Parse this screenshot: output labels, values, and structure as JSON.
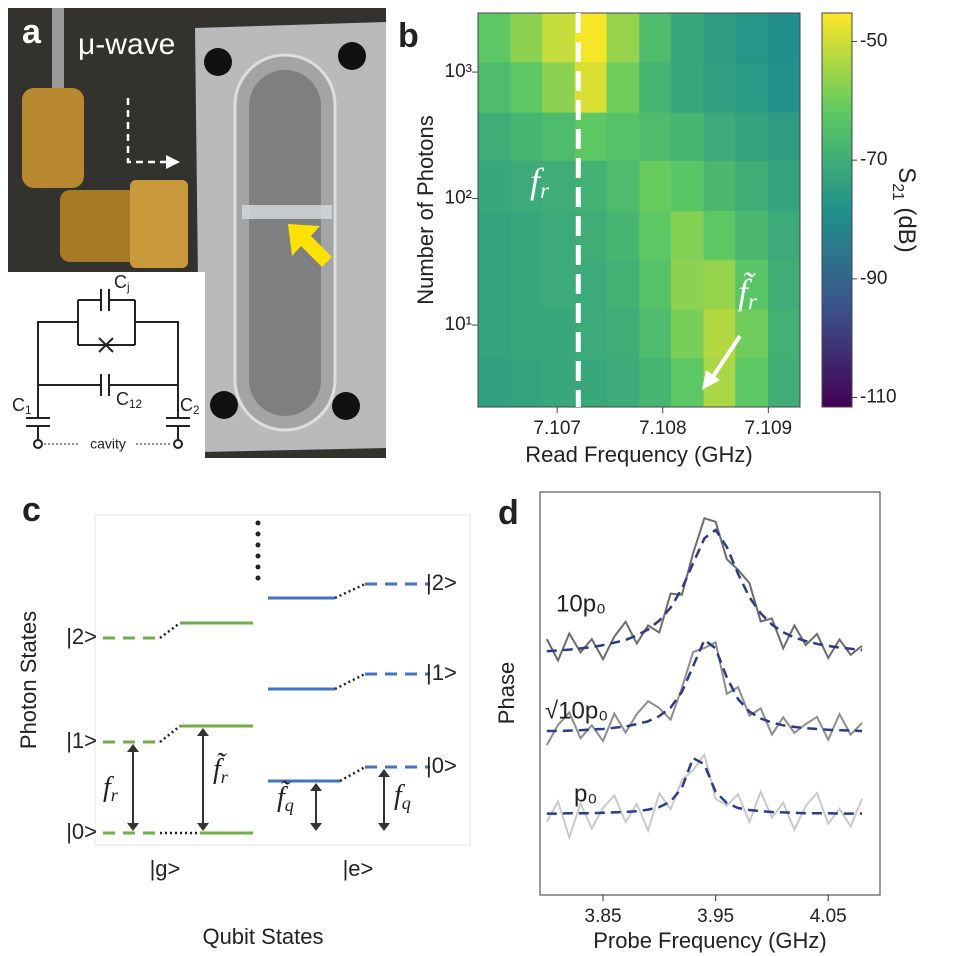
{
  "panel_a": {
    "label": "a",
    "annotation": "μ-wave",
    "circuit": {
      "capacitors": [
        {
          "base": "C",
          "sub": "j"
        },
        {
          "base": "C",
          "sub": "12"
        },
        {
          "base": "C",
          "sub": "1"
        },
        {
          "base": "C",
          "sub": "2"
        }
      ],
      "cavity": "cavity"
    }
  },
  "panel_c": {
    "label": "c",
    "ylabel": "Photon States",
    "xlabel": "Qubit States",
    "photon_states": [
      "|0>",
      "|1>",
      "|2>"
    ],
    "qubit_states": [
      "|g>",
      "|e>"
    ],
    "transitions": [
      {
        "base": "f",
        "sub": "r"
      },
      {
        "base": "f̃",
        "sub": "r"
      },
      {
        "base": "f̃",
        "sub": "q"
      },
      {
        "base": "f",
        "sub": "q"
      }
    ]
  },
  "chart_data": [
    {
      "label": "b",
      "type": "heatmap",
      "xlabel": "Read Frequency (GHz)",
      "ylabel": "Number of Photons",
      "xlim": [
        7.10625,
        7.1093
      ],
      "ylim": [
        2.25,
        2930
      ],
      "yscale": "log",
      "xticks": [
        7.107,
        7.108,
        7.109
      ],
      "yticks": [
        {
          "value": 10,
          "label": "10¹"
        },
        {
          "value": 100,
          "label": "10²"
        },
        {
          "value": 1000,
          "label": "10³"
        }
      ],
      "xbins": [
        7.10625,
        7.10656,
        7.10686,
        7.10717,
        7.10747,
        7.10778,
        7.10808,
        7.10839,
        7.10869,
        7.109,
        7.1093
      ],
      "ybins": [
        2.25,
        5.5,
        13.5,
        33,
        80,
        200,
        480,
        1200,
        2930
      ],
      "z": [
        [
          -74,
          -73,
          -72,
          -72,
          -71,
          -68,
          -62,
          -54,
          -62,
          -70
        ],
        [
          -73,
          -72,
          -72,
          -71,
          -70,
          -66,
          -59,
          -53,
          -60,
          -69
        ],
        [
          -73,
          -72,
          -71,
          -71,
          -69,
          -64,
          -57,
          -56,
          -63,
          -70
        ],
        [
          -73,
          -72,
          -71,
          -70,
          -68,
          -62,
          -58,
          -62,
          -67,
          -71
        ],
        [
          -72,
          -71,
          -70,
          -69,
          -66,
          -61,
          -63,
          -67,
          -70,
          -73
        ],
        [
          -70,
          -68,
          -66,
          -62,
          -64,
          -66,
          -68,
          -71,
          -73,
          -75
        ],
        [
          -66,
          -62,
          -57,
          -49,
          -60,
          -68,
          -72,
          -74,
          -76,
          -78
        ],
        [
          -62,
          -57,
          -51,
          -46,
          -56,
          -66,
          -72,
          -75,
          -77,
          -79
        ]
      ],
      "colormap": "viridis",
      "colorbar": {
        "label": {
          "base": "S",
          "sub": "21",
          "unit": "(dB)"
        },
        "lim": [
          -111.6,
          -45.2
        ],
        "ticks": [
          -50,
          -70,
          -90,
          -110
        ]
      },
      "fr_line_x": 7.1072,
      "line_label": {
        "base": "f",
        "sub": "r"
      },
      "arrow_label": {
        "base": "f̃",
        "sub": "r"
      }
    },
    {
      "label": "d",
      "type": "line",
      "xlabel": "Probe Frequency (GHz)",
      "ylabel": "Phase",
      "xlim": [
        3.794,
        4.096
      ],
      "ylim": [
        0,
        10
      ],
      "xticks": [
        3.85,
        3.95,
        4.05
      ],
      "x": [
        3.8,
        3.81,
        3.82,
        3.83,
        3.84,
        3.85,
        3.86,
        3.87,
        3.88,
        3.89,
        3.9,
        3.91,
        3.92,
        3.93,
        3.94,
        3.95,
        3.96,
        3.97,
        3.98,
        3.99,
        4.0,
        4.01,
        4.02,
        4.03,
        4.04,
        4.05,
        4.06,
        4.07,
        4.08
      ],
      "series": [
        {
          "name": "10p₀",
          "color": "#6c6c6c",
          "values": [
            6.35,
            5.82,
            6.49,
            6.02,
            6.35,
            5.85,
            6.41,
            6.78,
            6.24,
            6.69,
            6.51,
            7.48,
            7.45,
            8.48,
            9.35,
            9.26,
            8.33,
            8.07,
            7.74,
            6.79,
            6.86,
            6.12,
            6.69,
            6.2,
            6.48,
            5.88,
            6.34,
            5.96,
            6.18
          ]
        },
        {
          "name": "√10p₀",
          "color": "#8e8e8e",
          "values": [
            3.72,
            4.22,
            4.53,
            3.89,
            4.21,
            3.82,
            4.5,
            4.03,
            4.49,
            4.81,
            4.64,
            4.35,
            5.14,
            6.03,
            6.13,
            6.27,
            4.99,
            5.16,
            4.45,
            4.63,
            3.98,
            4.41,
            4.02,
            4.24,
            4.42,
            3.85,
            4.49,
            3.98,
            4.27
          ]
        },
        {
          "name": "p₀",
          "color": "#c9c9c9",
          "values": [
            1.82,
            2.32,
            1.43,
            2.27,
            1.65,
            2.16,
            2.47,
            1.81,
            2.26,
            1.6,
            2.52,
            2.13,
            2.85,
            3.1,
            3.48,
            2.39,
            2.22,
            2.5,
            1.81,
            2.56,
            1.92,
            2.29,
            1.62,
            2.21,
            2.53,
            1.77,
            2.14,
            1.7,
            2.39
          ]
        },
        {
          "color": "#2b3a8c",
          "dash": true,
          "values": [
            6.05,
            6.07,
            6.09,
            6.12,
            6.15,
            6.2,
            6.26,
            6.33,
            6.44,
            6.59,
            6.81,
            7.13,
            7.6,
            8.23,
            8.85,
            9.06,
            8.63,
            7.97,
            7.39,
            6.99,
            6.71,
            6.52,
            6.39,
            6.3,
            6.23,
            6.18,
            6.14,
            6.11,
            6.08
          ]
        },
        {
          "color": "#2b3a8c",
          "dash": true,
          "values": [
            4.07,
            4.07,
            4.08,
            4.09,
            4.11,
            4.12,
            4.15,
            4.18,
            4.24,
            4.31,
            4.44,
            4.65,
            5.04,
            5.68,
            6.33,
            6.12,
            5.39,
            4.86,
            4.55,
            4.38,
            4.28,
            4.21,
            4.17,
            4.14,
            4.12,
            4.1,
            4.09,
            4.08,
            4.07
          ]
        },
        {
          "color": "#2b3a8c",
          "dash": true,
          "values": [
            2.02,
            2.02,
            2.03,
            2.03,
            2.03,
            2.04,
            2.05,
            2.06,
            2.08,
            2.12,
            2.18,
            2.32,
            2.66,
            3.4,
            3.24,
            2.56,
            2.28,
            2.16,
            2.11,
            2.08,
            2.06,
            2.05,
            2.04,
            2.03,
            2.03,
            2.03,
            2.02,
            2.02,
            2.02
          ]
        }
      ]
    }
  ]
}
